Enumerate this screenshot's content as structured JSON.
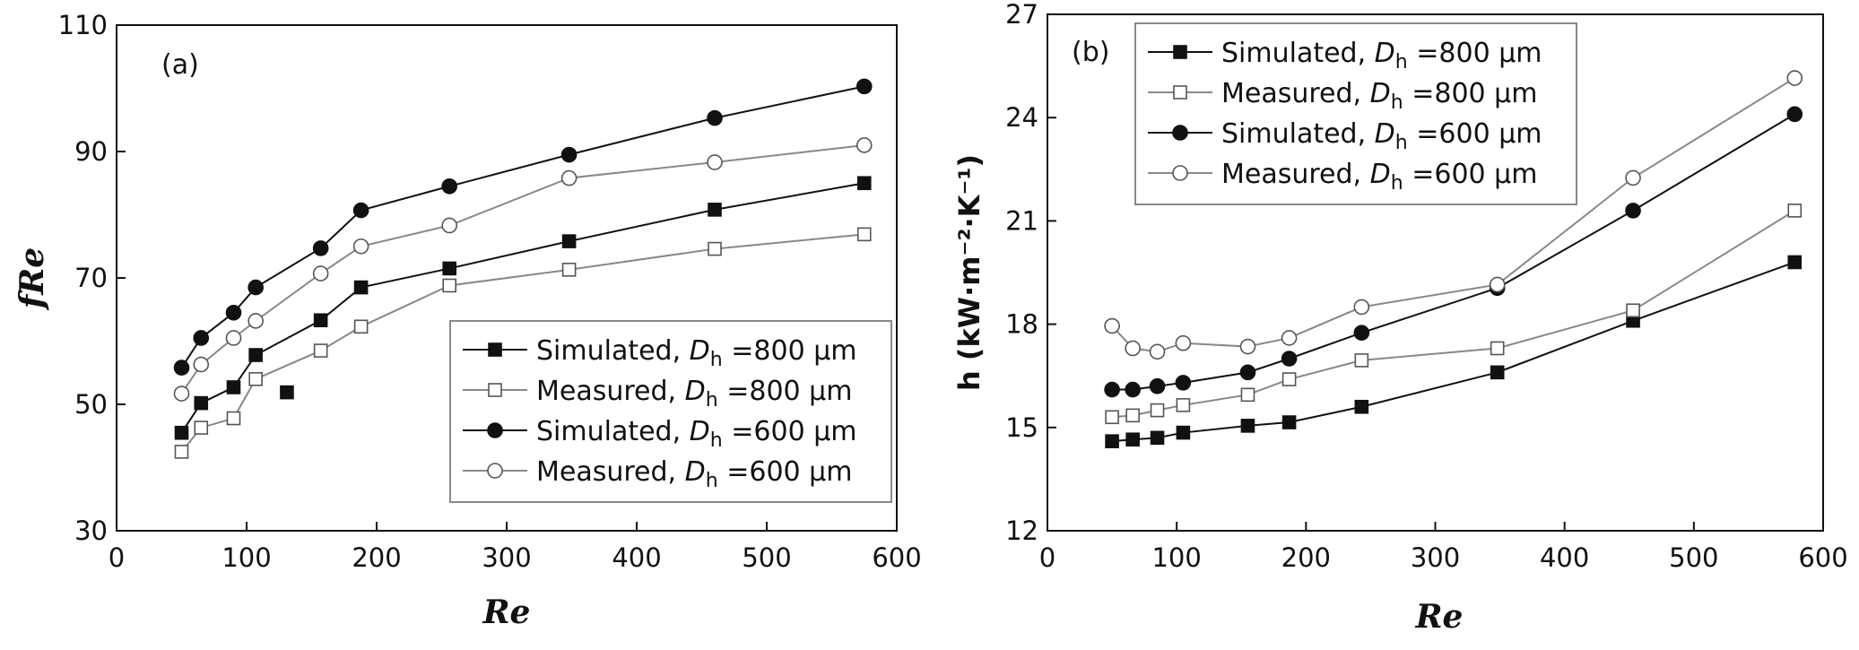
{
  "chart_data": [
    {
      "type": "line",
      "panel_label": "(a)",
      "title": "",
      "xlabel": "Re",
      "ylabel": "fRe",
      "xlim": [
        0,
        600
      ],
      "ylim": [
        30,
        110
      ],
      "xticks": [
        0,
        100,
        200,
        300,
        400,
        500,
        600
      ],
      "yticks": [
        30,
        50,
        70,
        90,
        110
      ],
      "legend_position": "bottom-right",
      "series": [
        {
          "name": "Simulated, Dh=800 μm",
          "legend_prefix": "Simulated, ",
          "legend_suffix": " =800 μm",
          "line_color": "#111111",
          "marker": "square-filled",
          "x": [
            50,
            65,
            90,
            107,
            157,
            188,
            256,
            348,
            460,
            575
          ],
          "y": [
            45.5,
            50.2,
            52.7,
            57.8,
            63.3,
            68.5,
            71.5,
            75.8,
            80.8,
            85.0
          ]
        },
        {
          "name": "Measured, Dh=800 μm",
          "legend_prefix": "Measured, ",
          "legend_suffix": " =800 μm",
          "line_color": "#888888",
          "marker": "square-open",
          "x": [
            50,
            65,
            90,
            107,
            157,
            188,
            256,
            348,
            460,
            575
          ],
          "y": [
            42.5,
            46.3,
            47.8,
            54.0,
            58.5,
            62.3,
            68.8,
            71.3,
            74.6,
            76.9
          ]
        },
        {
          "name": "Simulated, Dh=600 μm",
          "legend_prefix": "Simulated, ",
          "legend_suffix": " =600 μm",
          "line_color": "#111111",
          "marker": "circle-filled",
          "x": [
            50,
            65,
            90,
            107,
            157,
            188,
            256,
            348,
            460,
            575
          ],
          "y": [
            55.8,
            60.5,
            64.5,
            68.5,
            74.7,
            80.7,
            84.5,
            89.5,
            95.3,
            100.3
          ]
        },
        {
          "name": "Measured, Dh=600 μm",
          "legend_prefix": "Measured, ",
          "legend_suffix": " =600 μm",
          "line_color": "#888888",
          "marker": "circle-open",
          "x": [
            50,
            65,
            90,
            107,
            157,
            188,
            256,
            348,
            460,
            575
          ],
          "y": [
            51.7,
            56.3,
            60.5,
            63.2,
            70.7,
            75.0,
            78.3,
            85.8,
            88.3,
            91.0
          ]
        }
      ],
      "annotations": [
        {
          "type": "stray-marker",
          "marker": "square-filled",
          "x": 131,
          "y": 51.9
        }
      ]
    },
    {
      "type": "line",
      "panel_label": "(b)",
      "title": "",
      "xlabel": "Re",
      "ylabel": "h (kW·m⁻²·K⁻¹)",
      "xlim": [
        0,
        600
      ],
      "ylim": [
        12,
        27
      ],
      "xticks": [
        0,
        100,
        200,
        300,
        400,
        500,
        600
      ],
      "yticks": [
        12,
        15,
        18,
        21,
        24,
        27
      ],
      "legend_position": "top-left",
      "series": [
        {
          "name": "Simulated, Dh=800 μm",
          "legend_prefix": "Simulated, ",
          "legend_suffix": " =800 μm",
          "line_color": "#111111",
          "marker": "square-filled",
          "x": [
            50,
            66,
            85,
            105,
            155,
            187,
            243,
            348,
            453,
            578
          ],
          "y": [
            14.6,
            14.65,
            14.7,
            14.85,
            15.05,
            15.15,
            15.6,
            16.6,
            18.1,
            19.8
          ]
        },
        {
          "name": "Measured, Dh=800 μm",
          "legend_prefix": "Measured, ",
          "legend_suffix": " =800 μm",
          "line_color": "#888888",
          "marker": "square-open",
          "x": [
            50,
            66,
            85,
            105,
            155,
            187,
            243,
            348,
            453,
            578
          ],
          "y": [
            15.3,
            15.35,
            15.5,
            15.65,
            15.95,
            16.4,
            16.95,
            17.3,
            18.4,
            21.3
          ]
        },
        {
          "name": "Simulated, Dh=600 μm",
          "legend_prefix": "Simulated, ",
          "legend_suffix": " =600 μm",
          "line_color": "#111111",
          "marker": "circle-filled",
          "x": [
            50,
            66,
            85,
            105,
            155,
            187,
            243,
            348,
            453,
            578
          ],
          "y": [
            16.1,
            16.1,
            16.2,
            16.3,
            16.6,
            17.0,
            17.75,
            19.05,
            21.3,
            24.1
          ]
        },
        {
          "name": "Measured, Dh=600 μm",
          "legend_prefix": "Measured, ",
          "legend_suffix": " =600 μm",
          "line_color": "#888888",
          "marker": "circle-open",
          "x": [
            50,
            66,
            85,
            105,
            155,
            187,
            243,
            348,
            453,
            578
          ],
          "y": [
            17.95,
            17.3,
            17.2,
            17.45,
            17.35,
            17.6,
            18.5,
            19.15,
            22.25,
            25.15
          ]
        }
      ],
      "annotations": []
    }
  ]
}
